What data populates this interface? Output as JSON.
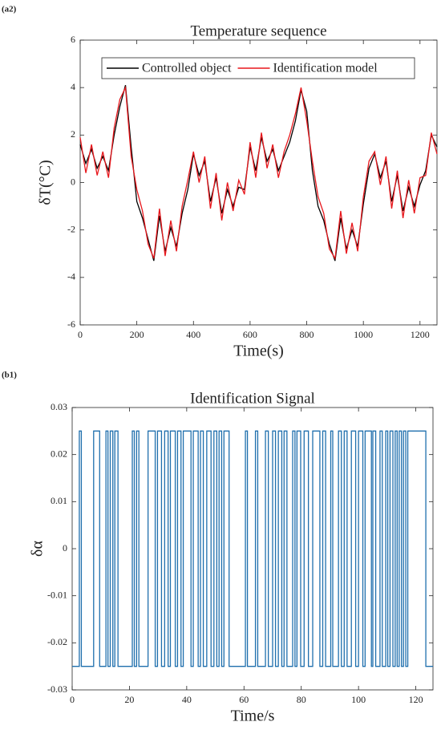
{
  "chart_data": [
    {
      "type": "line",
      "panel": "(a2)",
      "title": "Temperature sequence",
      "xlabel": "Time(s)",
      "ylabel": "δT(°C)",
      "xlim": [
        0,
        1260
      ],
      "xticks": [
        0,
        200,
        400,
        600,
        800,
        1000,
        1200
      ],
      "ylim": [
        -6,
        6
      ],
      "yticks": [
        -6,
        -4,
        -2,
        0,
        2,
        4,
        6
      ],
      "legend": "top",
      "x": [
        0,
        20,
        40,
        60,
        80,
        100,
        120,
        140,
        160,
        180,
        200,
        220,
        240,
        260,
        280,
        300,
        320,
        340,
        360,
        380,
        400,
        420,
        440,
        460,
        480,
        500,
        520,
        540,
        560,
        580,
        600,
        620,
        640,
        660,
        680,
        700,
        720,
        740,
        760,
        780,
        800,
        820,
        840,
        860,
        880,
        900,
        920,
        940,
        960,
        980,
        1000,
        1020,
        1040,
        1060,
        1080,
        1100,
        1120,
        1140,
        1160,
        1180,
        1200,
        1220,
        1240,
        1260
      ],
      "series": [
        {
          "name": "Controlled object",
          "color": "#000000",
          "values": [
            1.6,
            0.8,
            1.4,
            0.6,
            1.1,
            0.5,
            2.0,
            3.2,
            4.1,
            1.5,
            -0.8,
            -1.5,
            -2.4,
            -3.3,
            -1.4,
            -2.9,
            -1.9,
            -2.7,
            -1.3,
            -0.3,
            1.2,
            0.3,
            0.9,
            -0.8,
            0.2,
            -1.3,
            -0.3,
            -1.0,
            -0.2,
            -0.3,
            1.5,
            0.5,
            1.9,
            0.9,
            1.4,
            0.5,
            1.1,
            1.7,
            2.6,
            3.9,
            3.0,
            0.5,
            -1.0,
            -1.6,
            -2.6,
            -3.3,
            -1.5,
            -2.8,
            -2.0,
            -2.7,
            -0.9,
            0.6,
            1.2,
            0.2,
            0.9,
            -0.8,
            0.3,
            -1.2,
            -0.2,
            -1.0,
            -0.1,
            0.5,
            2.0,
            1.5
          ]
        },
        {
          "name": "Identification model",
          "color": "#e8171c",
          "values": [
            1.9,
            0.4,
            1.6,
            0.3,
            1.3,
            0.2,
            2.3,
            3.5,
            4.0,
            1.1,
            -0.3,
            -1.2,
            -2.6,
            -3.2,
            -1.1,
            -3.1,
            -1.6,
            -2.9,
            -1.0,
            0.1,
            1.3,
            0.0,
            1.1,
            -1.1,
            0.4,
            -1.6,
            0.0,
            -1.2,
            0.1,
            -0.5,
            1.7,
            0.2,
            2.1,
            0.6,
            1.6,
            0.2,
            1.3,
            2.0,
            2.9,
            4.0,
            2.6,
            0.9,
            -0.6,
            -1.3,
            -2.8,
            -3.2,
            -1.2,
            -3.0,
            -1.7,
            -2.9,
            -0.6,
            0.9,
            1.3,
            -0.1,
            1.1,
            -1.1,
            0.5,
            -1.5,
            0.1,
            -1.3,
            0.2,
            0.3,
            2.1,
            1.2
          ]
        }
      ]
    },
    {
      "type": "step",
      "panel": "(b1)",
      "title": "Identification Signal",
      "xlabel": "Time/s",
      "ylabel": "δα",
      "xlim": [
        0,
        126
      ],
      "xticks": [
        0,
        20,
        40,
        60,
        80,
        100,
        120
      ],
      "ylim": [
        -0.03,
        0.03
      ],
      "yticks": [
        -0.03,
        -0.02,
        -0.01,
        0,
        0.01,
        0.02,
        0.03
      ],
      "x": [
        0,
        2.5,
        3.2,
        7.5,
        9.6,
        11.8,
        12.5,
        13.3,
        14.2,
        14.9,
        16.0,
        21.0,
        21.7,
        22.5,
        23.3,
        26.5,
        29.0,
        29.8,
        31.2,
        32.3,
        33.5,
        34.3,
        36.0,
        36.8,
        38.0,
        38.8,
        41.5,
        42.3,
        44.0,
        44.8,
        45.8,
        47.0,
        48.5,
        49.5,
        50.5,
        51.3,
        52.2,
        53.0,
        54.8,
        60.5,
        61.2,
        64.0,
        64.8,
        67.5,
        68.5,
        70.0,
        71.0,
        72.0,
        73.2,
        74.0,
        75.0,
        77.0,
        77.8,
        78.5,
        79.8,
        81.0,
        82.5,
        84.0,
        86.5,
        87.5,
        88.5,
        90.3,
        91.0,
        93.0,
        94.0,
        95.0,
        96.0,
        97.5,
        99.0,
        100.0,
        101.5,
        102.3,
        104.5,
        105.0,
        106.0,
        107.5,
        108.3,
        109.5,
        110.2,
        111.0,
        112.0,
        112.8,
        113.5,
        114.2,
        115.0,
        115.7,
        116.5,
        117.2,
        123.5
      ],
      "series": [
        {
          "color": "#1f6fad",
          "values": [
            -0.025,
            0.025,
            -0.025,
            0.025,
            -0.025,
            0.025,
            -0.025,
            0.025,
            -0.025,
            0.025,
            -0.025,
            0.025,
            -0.025,
            0.025,
            -0.025,
            0.025,
            -0.025,
            0.025,
            -0.025,
            0.025,
            -0.025,
            0.025,
            -0.025,
            0.025,
            -0.025,
            0.025,
            -0.025,
            0.025,
            -0.025,
            0.025,
            -0.025,
            0.025,
            -0.025,
            0.025,
            -0.025,
            0.025,
            -0.025,
            0.025,
            -0.025,
            0.025,
            -0.025,
            0.025,
            -0.025,
            0.025,
            -0.025,
            0.025,
            -0.025,
            0.025,
            -0.025,
            0.025,
            -0.025,
            0.025,
            -0.025,
            0.025,
            -0.025,
            0.025,
            -0.025,
            0.025,
            -0.025,
            0.025,
            -0.025,
            0.025,
            -0.025,
            0.025,
            -0.025,
            0.025,
            -0.025,
            0.025,
            -0.025,
            0.025,
            -0.025,
            0.025,
            -0.025,
            0.025,
            -0.025,
            0.025,
            -0.025,
            0.025,
            -0.025,
            0.025,
            -0.025,
            0.025,
            -0.025,
            0.025,
            -0.025,
            0.025,
            -0.025,
            0.025,
            -0.025
          ]
        }
      ]
    }
  ]
}
